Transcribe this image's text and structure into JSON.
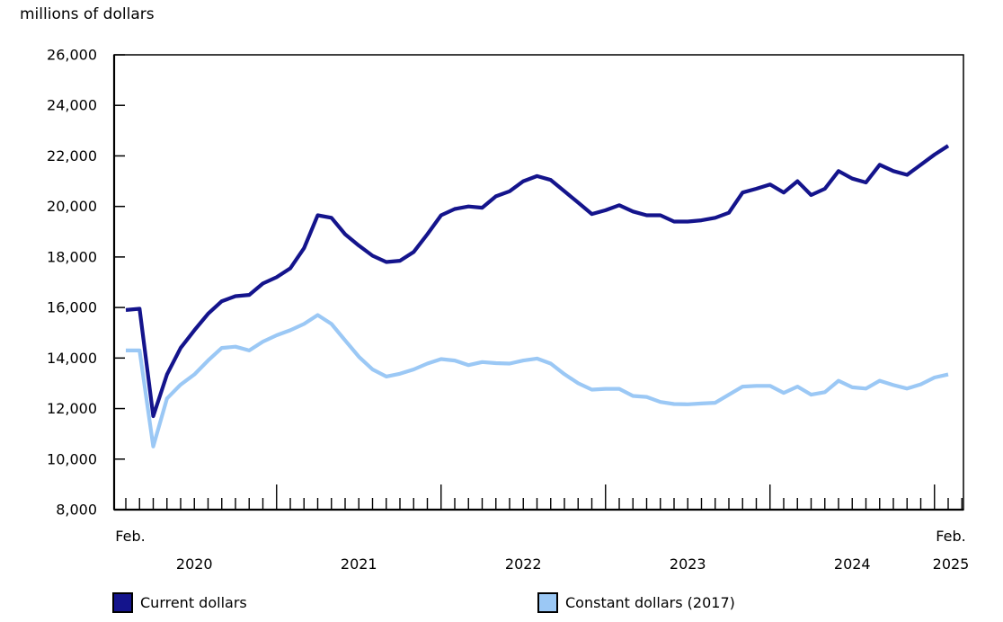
{
  "title": "millions of dollars",
  "colors": {
    "current": "#14148c",
    "constant": "#9bc8f5",
    "axis": "#000000",
    "text": "#000000"
  },
  "y_axis": {
    "tick_labels": [
      "26,000",
      "24,000",
      "22,000",
      "20,000",
      "18,000",
      "16,000",
      "14,000",
      "12,000",
      "10,000",
      "8,000"
    ],
    "max": 26000,
    "min": 8000,
    "step": 2000
  },
  "x_axis": {
    "start_label": "Feb.",
    "end_label": "Feb.",
    "years": [
      "2020",
      "2021",
      "2022",
      "2023",
      "2024",
      "2025"
    ]
  },
  "legend": [
    {
      "label": "Current dollars"
    },
    {
      "label": "Constant dollars (2017)"
    }
  ],
  "chart_data": {
    "type": "line",
    "title": "millions of dollars",
    "x_start": "2020-02",
    "x_end": "2025-02",
    "x_interval": "monthly",
    "ylim": [
      8000,
      26000
    ],
    "grid": false,
    "legend_position": "bottom",
    "series": [
      {
        "name": "Current dollars",
        "color": "#14148c",
        "values": [
          15900,
          15950,
          11700,
          13350,
          14400,
          15100,
          15750,
          16250,
          16450,
          16500,
          16950,
          17200,
          17550,
          18350,
          19650,
          19550,
          18900,
          18450,
          18050,
          17800,
          17850,
          18200,
          18900,
          19650,
          19900,
          20000,
          19950,
          20400,
          20600,
          21000,
          21200,
          21050,
          20600,
          20150,
          19700,
          19850,
          20050,
          19800,
          19650,
          19650,
          19400,
          19400,
          19450,
          19550,
          19750,
          20550,
          20700,
          20870,
          20550,
          21000,
          20450,
          20700,
          21400,
          21100,
          20950,
          21650,
          21400,
          21250,
          21650,
          22050,
          22400
        ]
      },
      {
        "name": "Constant dollars (2017)",
        "color": "#9bc8f5",
        "values": [
          14300,
          14300,
          10500,
          12400,
          12950,
          13350,
          13900,
          14400,
          14450,
          14300,
          14650,
          14900,
          15100,
          15350,
          15700,
          15350,
          14700,
          14050,
          13550,
          13270,
          13380,
          13550,
          13780,
          13960,
          13900,
          13720,
          13840,
          13800,
          13780,
          13900,
          13980,
          13780,
          13360,
          13000,
          12750,
          12780,
          12780,
          12500,
          12460,
          12260,
          12180,
          12170,
          12200,
          12230,
          12550,
          12870,
          12900,
          12900,
          12620,
          12870,
          12550,
          12650,
          13100,
          12840,
          12790,
          13100,
          12930,
          12790,
          12960,
          13230,
          13350
        ]
      }
    ]
  }
}
